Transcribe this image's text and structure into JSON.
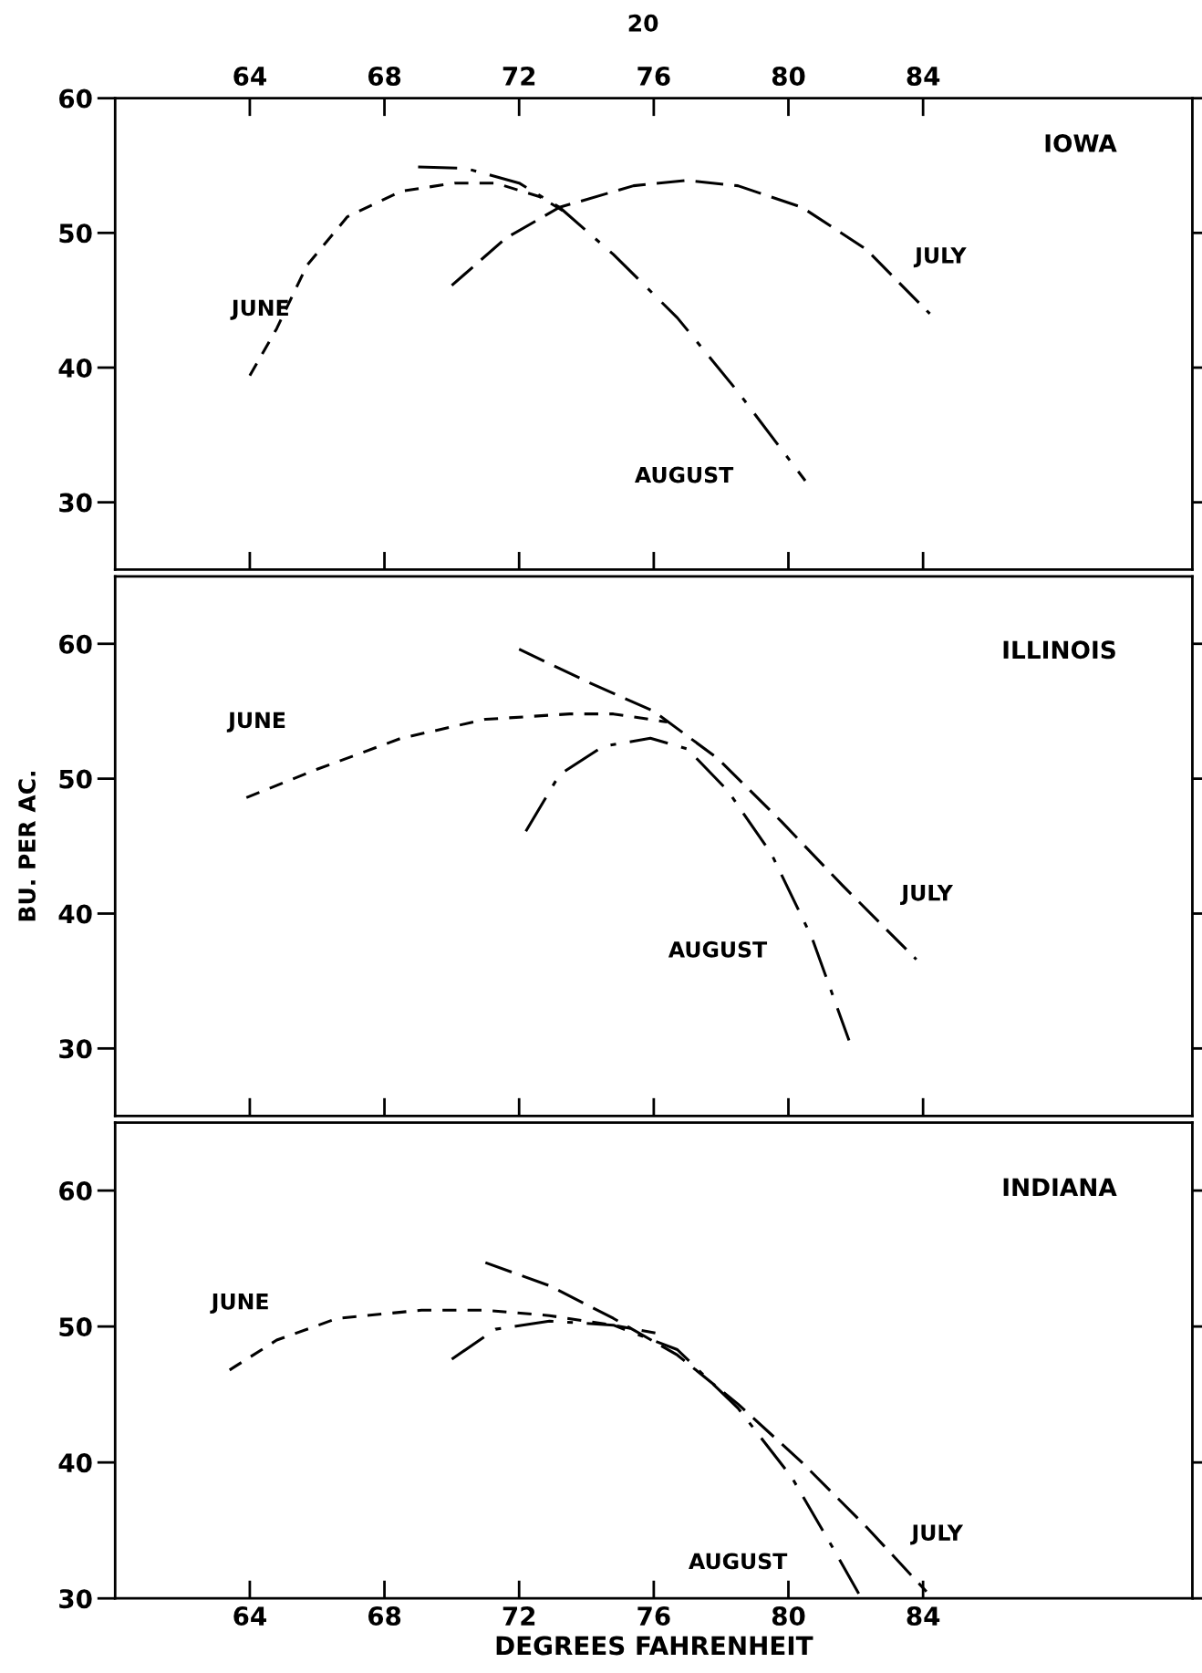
{
  "chart_data": [
    {
      "type": "line",
      "title": "IOWA",
      "annotations": [
        "20"
      ],
      "xlim": [
        60,
        92
      ],
      "ylim": [
        25,
        60
      ],
      "xticks": [
        64,
        68,
        72,
        76,
        80,
        84
      ],
      "yticks": [
        30,
        40,
        50,
        60
      ],
      "grid": false,
      "legend": false,
      "series": [
        {
          "name": "JUNE",
          "color": "#000000",
          "line_style": "dashed",
          "x": [
            64,
            64.8,
            65.7,
            66.9,
            68.5,
            70.1,
            71.3,
            72.6,
            73.4
          ],
          "values": [
            39.4,
            42.9,
            47.6,
            51.2,
            53.1,
            53.7,
            53.7,
            52.7,
            51.5
          ]
        },
        {
          "name": "JULY",
          "color": "#000000",
          "line_style": "dashed",
          "x": [
            70.0,
            71.6,
            73.2,
            75.4,
            77.0,
            78.5,
            80.4,
            82.3,
            84.2
          ],
          "values": [
            46.1,
            49.6,
            51.9,
            53.5,
            53.9,
            53.5,
            51.9,
            48.8,
            44.0
          ]
        },
        {
          "name": "AUGUST",
          "color": "#000000",
          "line_style": "dashdot",
          "x": [
            69.0,
            70.4,
            72.0,
            73.2,
            74.8,
            76.7,
            78.5,
            80.5
          ],
          "values": [
            54.9,
            54.8,
            53.7,
            51.9,
            48.4,
            43.7,
            38.2,
            31.6
          ]
        }
      ]
    },
    {
      "type": "line",
      "title": "ILLINOIS",
      "ylabel": "BU. PER AC.",
      "xlim": [
        60,
        92
      ],
      "ylim": [
        25,
        65
      ],
      "tick_labels": "y",
      "xticks": [
        {
          "value": 64,
          "label": null
        },
        {
          "value": 68,
          "label": null
        },
        {
          "value": 72,
          "label": null
        },
        {
          "value": 76,
          "label": null
        },
        {
          "value": 80,
          "label": null
        },
        {
          "value": 84,
          "label": null
        }
      ],
      "yticks": [
        30,
        40,
        50,
        60
      ],
      "grid": false,
      "legend": false,
      "series": [
        {
          "name": "JUNE",
          "color": "#000000",
          "line_style": "dashed",
          "x": [
            63.9,
            66.0,
            68.5,
            71.0,
            73.5,
            74.8,
            76.4
          ],
          "values": [
            48.6,
            50.7,
            53.0,
            54.4,
            54.8,
            54.8,
            54.2
          ]
        },
        {
          "name": "JULY",
          "color": "#000000",
          "line_style": "dashed",
          "x": [
            72.0,
            74.1,
            76.0,
            77.9,
            79.8,
            81.6,
            83.8
          ],
          "values": [
            59.6,
            57.1,
            55.0,
            51.5,
            46.8,
            42.1,
            36.6
          ]
        },
        {
          "name": "AUGUST",
          "color": "#000000",
          "line_style": "dashdot",
          "x": [
            72.2,
            73.2,
            74.5,
            75.9,
            77.0,
            78.2,
            79.5,
            80.7,
            81.8
          ],
          "values": [
            46.1,
            50.3,
            52.4,
            53.0,
            52.2,
            49.1,
            44.4,
            38.2,
            30.6
          ]
        }
      ]
    },
    {
      "type": "line",
      "title": "INDIANA",
      "xlabel": "DEGREES FAHRENHEIT",
      "xlim": [
        60,
        92
      ],
      "ylim": [
        30,
        65
      ],
      "xticks": [
        64,
        68,
        72,
        76,
        80,
        84
      ],
      "yticks": [
        30,
        40,
        50,
        60
      ],
      "grid": false,
      "legend": false,
      "series": [
        {
          "name": "JUNE",
          "color": "#000000",
          "line_style": "dashed",
          "x": [
            63.4,
            64.8,
            66.6,
            69.1,
            71.0,
            72.9,
            74.8,
            76.3
          ],
          "values": [
            46.8,
            49.0,
            50.6,
            51.2,
            51.2,
            50.8,
            50.1,
            49.4
          ]
        },
        {
          "name": "JULY",
          "color": "#000000",
          "line_style": "dashed",
          "x": [
            71.0,
            72.9,
            74.8,
            76.7,
            78.5,
            80.4,
            82.3,
            84.1
          ],
          "values": [
            54.7,
            53.0,
            50.6,
            47.9,
            44.3,
            40.0,
            35.3,
            30.5
          ]
        },
        {
          "name": "AUGUST",
          "color": "#000000",
          "line_style": "dashdot",
          "x": [
            70.0,
            71.3,
            72.9,
            74.8,
            76.7,
            78.5,
            80.1,
            81.3,
            82.1
          ],
          "values": [
            47.6,
            49.8,
            50.4,
            50.1,
            48.3,
            44.0,
            38.9,
            33.8,
            30.3
          ]
        }
      ]
    }
  ]
}
